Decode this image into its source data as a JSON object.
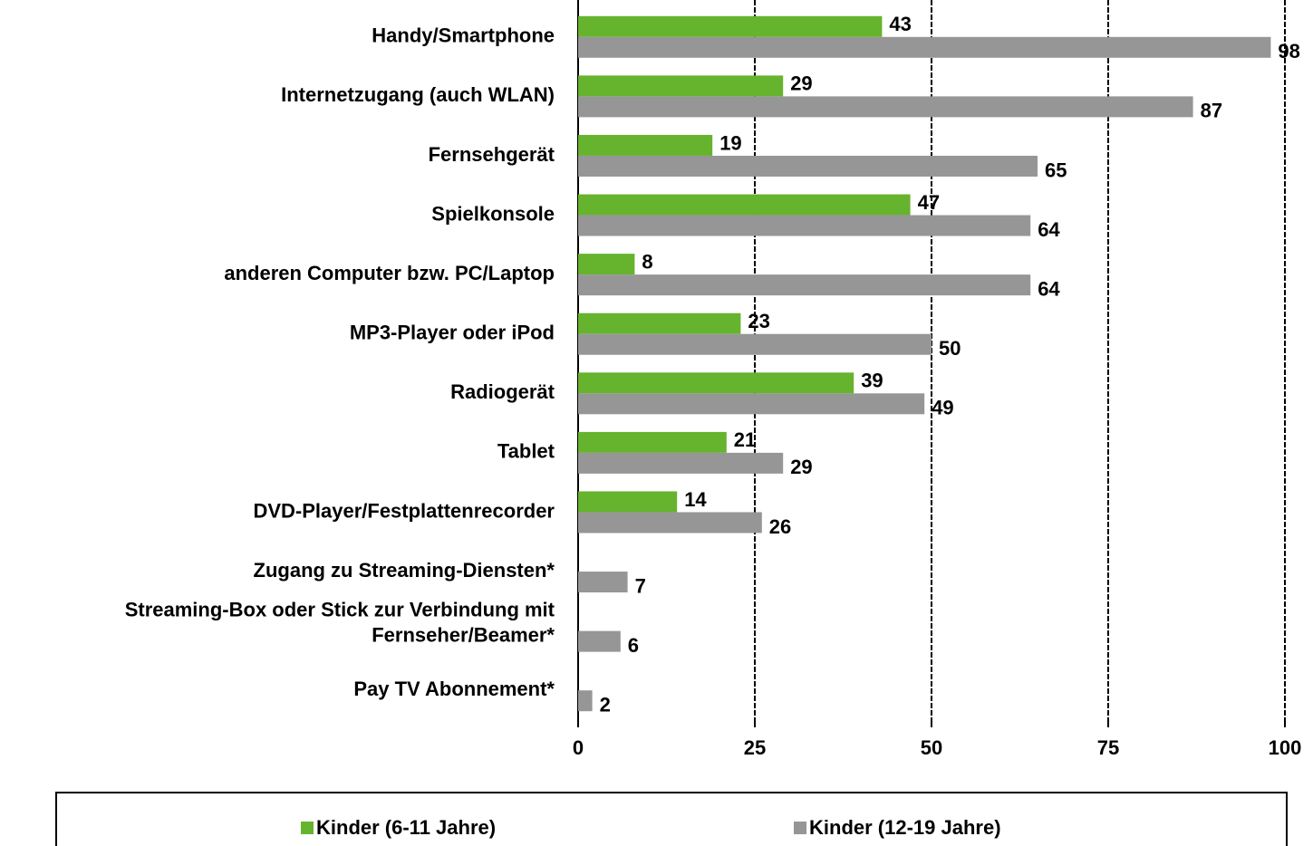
{
  "chart_data": {
    "type": "barh",
    "categories": [
      "Handy/Smartphone",
      "Internetzugang (auch WLAN)",
      "Fernsehgerät",
      "Spielkonsole",
      "anderen Computer bzw. PC/Laptop",
      "MP3-Player oder iPod",
      "Radiogerät",
      "Tablet",
      "DVD-Player/Festplattenrecorder",
      "Zugang zu Streaming-Diensten*",
      "Streaming-Box oder Stick zur Verbindung mit\nFernseher/Beamer*",
      "Pay TV Abonnement*"
    ],
    "series": [
      {
        "name": "Kinder (6-11 Jahre)",
        "color": "#66b32e",
        "values": [
          43,
          29,
          19,
          47,
          8,
          23,
          39,
          21,
          14,
          null,
          null,
          null
        ]
      },
      {
        "name": "Kinder (12-19 Jahre)",
        "color": "#969696",
        "values": [
          98,
          87,
          65,
          64,
          64,
          50,
          49,
          29,
          26,
          7,
          6,
          2
        ]
      }
    ],
    "xlim": [
      0,
      100
    ],
    "xticks": [
      0,
      25,
      50,
      75,
      100
    ],
    "grid": true,
    "legend": "bottom"
  }
}
